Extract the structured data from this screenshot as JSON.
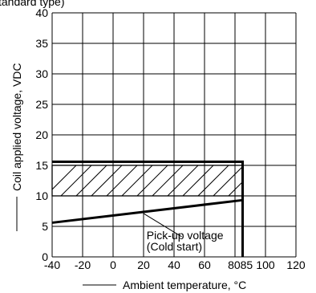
{
  "header_fragment": "tandard type)",
  "chart_data": {
    "type": "line",
    "title": "",
    "xlabel": "Ambient temperature, °C",
    "ylabel": "Coil applied voltage, VDC",
    "xlim": [
      -40,
      120
    ],
    "ylim": [
      0,
      40
    ],
    "x_ticks": [
      -40,
      -20,
      0,
      20,
      40,
      60,
      80,
      85,
      100,
      120
    ],
    "x_tick_labels": [
      "-40",
      "-20",
      "0",
      "20",
      "40",
      "60",
      "80",
      "85",
      "100",
      "120"
    ],
    "y_ticks": [
      0,
      5,
      10,
      15,
      20,
      25,
      30,
      35,
      40
    ],
    "y_tick_labels": [
      "0",
      "5",
      "10",
      "15",
      "20",
      "25",
      "30",
      "35",
      "40"
    ],
    "grid": true,
    "series": [
      {
        "name": "Pick-up voltage (Cold start)",
        "x": [
          -40,
          85
        ],
        "y": [
          5.6,
          9.3
        ],
        "annotation": [
          "Pick-up voltage",
          "(Cold start)"
        ]
      },
      {
        "x": [
          -40,
          85,
          85
        ],
        "y": [
          15.6,
          15.6,
          0
        ]
      }
    ],
    "regions": [
      {
        "type": "hatched-band",
        "x": [
          -40,
          85
        ],
        "y": [
          10,
          15
        ]
      }
    ]
  }
}
